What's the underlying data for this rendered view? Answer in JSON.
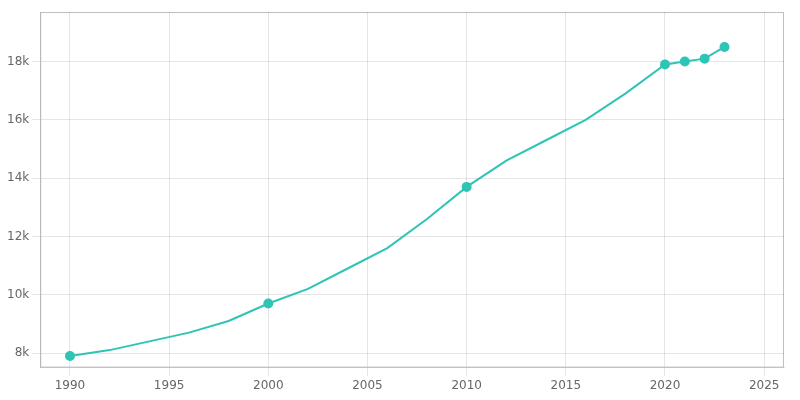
{
  "chart_data": {
    "type": "line",
    "series": [
      {
        "type": "line",
        "color": "#2ec4b6",
        "marker": "none",
        "line_style": "solid",
        "x": [
          1990,
          1992,
          1994,
          1996,
          1998,
          2000,
          2002,
          2004,
          2006,
          2008,
          2010,
          2012,
          2014,
          2016,
          2018,
          2020,
          2021,
          2022,
          2023
        ],
        "values": [
          7900,
          8100,
          8400,
          8700,
          9100,
          9700,
          10200,
          10900,
          11600,
          12600,
          13700,
          14600,
          15300,
          16000,
          16900,
          17900,
          18000,
          18100,
          18500
        ]
      },
      {
        "type": "scatter",
        "color": "#2ec4b6",
        "marker": "circle",
        "x": [
          1990,
          2000,
          2010,
          2020,
          2021,
          2022,
          2023
        ],
        "values": [
          7900,
          9700,
          13700,
          17900,
          18000,
          18100,
          18500
        ]
      }
    ],
    "xlim": [
      1988.5,
      2026
    ],
    "ylim": [
      7500,
      19700
    ],
    "xticks": [
      1990,
      1995,
      2000,
      2005,
      2010,
      2015,
      2020,
      2025
    ],
    "yticks": [
      {
        "value": 8000,
        "label": "8k"
      },
      {
        "value": 10000,
        "label": "10k"
      },
      {
        "value": 12000,
        "label": "12k"
      },
      {
        "value": 14000,
        "label": "14k"
      },
      {
        "value": 16000,
        "label": "16k"
      },
      {
        "value": 18000,
        "label": "18k"
      }
    ],
    "grid": true
  }
}
